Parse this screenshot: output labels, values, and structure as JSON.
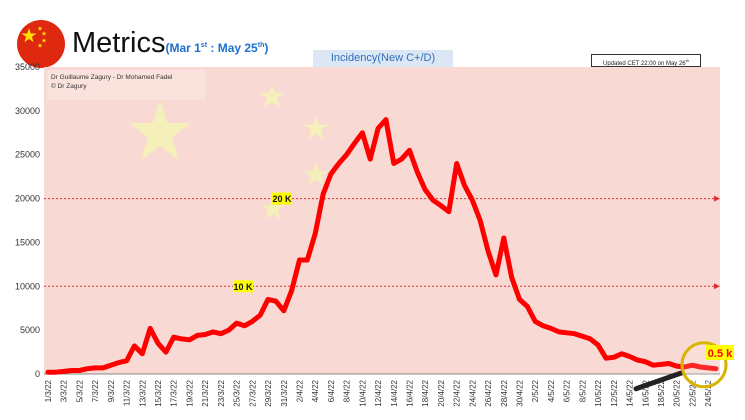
{
  "header": {
    "title": "Metrics",
    "subtitle_prefix": "(Mar 1",
    "subtitle_sup1": "st",
    "subtitle_mid": " : May 25",
    "subtitle_sup2": "th",
    "subtitle_suffix": ")",
    "incidency_label": "Incidency(New C+/D)",
    "updated_prefix": "Updated CET 22:00 on May 26",
    "updated_sup": "th",
    "credits_line1": "Dr Guillaume Zagury -  Dr Mohamed Fadel",
    "credits_line2": "© Dr Zagury"
  },
  "chart_data": {
    "type": "line",
    "title": "Incidency(New C+/D)",
    "x_tick_labels": [
      "1/3/22",
      "3/3/22",
      "5/3/22",
      "7/3/22",
      "9/3/22",
      "11/3/22",
      "13/3/22",
      "15/3/22",
      "17/3/22",
      "19/3/22",
      "21/3/22",
      "23/3/22",
      "25/3/22",
      "27/3/22",
      "29/3/22",
      "31/3/22",
      "2/4/22",
      "4/4/22",
      "6/4/22",
      "8/4/22",
      "10/4/22",
      "12/4/22",
      "14/4/22",
      "16/4/22",
      "18/4/22",
      "20/4/22",
      "22/4/22",
      "24/4/22",
      "26/4/22",
      "28/4/22",
      "30/4/22",
      "2/5/22",
      "4/5/22",
      "6/5/22",
      "8/5/22",
      "10/5/22",
      "12/5/22",
      "14/5/22",
      "16/5/22",
      "18/5/22",
      "20/5/22",
      "22/5/22",
      "24/5/22"
    ],
    "ylim": [
      0,
      35000
    ],
    "y_ticks": [
      0,
      5000,
      10000,
      15000,
      20000,
      25000,
      30000,
      35000
    ],
    "y_tick_labels": [
      "0",
      "5000",
      "10000",
      "15000",
      "20000",
      "25000",
      "30000",
      "35000"
    ],
    "series": [
      {
        "color": "#ff0000",
        "values": [
          200,
          200,
          300,
          400,
          400,
          600,
          700,
          700,
          1000,
          1300,
          1500,
          3200,
          2300,
          5200,
          3500,
          2500,
          4200,
          4000,
          3900,
          4400,
          4500,
          4800,
          4600,
          5000,
          5800,
          5500,
          6000,
          6700,
          8500,
          8300,
          7200,
          9500,
          13000,
          13000,
          16000,
          20500,
          22800,
          24000,
          25000,
          26300,
          27500,
          24500,
          28000,
          29000,
          24000,
          24500,
          25500,
          23000,
          21000,
          19800,
          19200,
          18500,
          24000,
          21500,
          19800,
          17500,
          14000,
          11300,
          15500,
          11000,
          8500,
          7700,
          6000,
          5500,
          5200,
          4800,
          4700,
          4600,
          4300,
          4000,
          3300,
          1800,
          1900,
          2300,
          2000,
          1600,
          1400,
          1000,
          1100,
          1200,
          900,
          800,
          1000,
          800,
          700,
          600
        ]
      }
    ],
    "reference_lines": [
      {
        "value": 20000,
        "label": "20 K"
      },
      {
        "value": 10000,
        "label": "10 K"
      }
    ],
    "callout_label": "0.5 k",
    "grid": false
  }
}
